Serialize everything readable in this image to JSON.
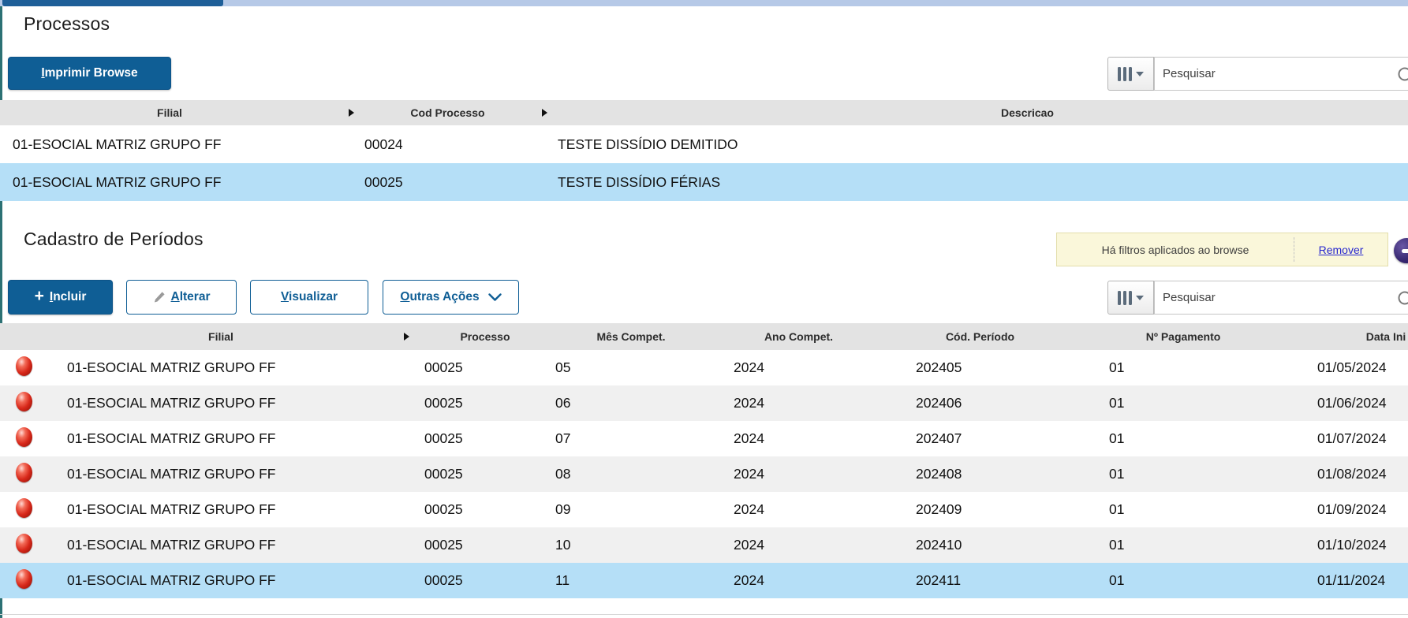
{
  "colors": {
    "accent": "#0f5e95",
    "selected_row": "#b5dff7",
    "alt_row": "#f0f0f0",
    "header_row": "#e3e3e3",
    "notice_bg": "#faf7da",
    "status_red": "#d8281a",
    "badge_purple": "#3a2a74",
    "topbar_blue": "#b6c9e7",
    "left_edge_teal": "#2c7174"
  },
  "icons": {
    "columns_button": "columns-icon",
    "caret": "caret-down-icon",
    "search": "search-icon",
    "sort": "sort-arrow-icon",
    "status": "red-ball-icon",
    "badge": "purple-filter-icon",
    "incluir": "plus-icon",
    "alterar": "pencil-icon",
    "outras": "chevron-down-icon"
  },
  "processos": {
    "title": "Processos",
    "print_button": "Imprimir Browse",
    "search_placeholder": "Pesquisar",
    "columns": [
      "Filial",
      "Cod Processo",
      "Descricao"
    ],
    "rows": [
      {
        "filial": "01-ESOCIAL MATRIZ GRUPO FF",
        "cod": "00024",
        "descricao": "TESTE DISSÍDIO DEMITIDO",
        "selected": false
      },
      {
        "filial": "01-ESOCIAL MATRIZ GRUPO FF",
        "cod": "00025",
        "descricao": "TESTE DISSÍDIO FÉRIAS",
        "selected": true
      }
    ]
  },
  "periodos": {
    "title": "Cadastro de Períodos",
    "filter_notice": {
      "text": "Há filtros aplicados ao browse",
      "action": "Remover"
    },
    "buttons": {
      "incluir": "Incluir",
      "alterar": "Alterar",
      "visualizar": "Visualizar",
      "outras_acoes": "Outras Ações"
    },
    "search_placeholder": "Pesquisar",
    "columns": [
      "Filial",
      "Processo",
      "Mês Compet.",
      "Ano Compet.",
      "Cód. Período",
      "Nº Pagamento",
      "Data Ini"
    ],
    "rows": [
      {
        "filial": "01-ESOCIAL MATRIZ GRUPO FF",
        "processo": "00025",
        "mes": "05",
        "ano": "2024",
        "cod_periodo": "202405",
        "pagamento": "01",
        "data_ini": "01/05/2024",
        "selected": false
      },
      {
        "filial": "01-ESOCIAL MATRIZ GRUPO FF",
        "processo": "00025",
        "mes": "06",
        "ano": "2024",
        "cod_periodo": "202406",
        "pagamento": "01",
        "data_ini": "01/06/2024",
        "selected": false
      },
      {
        "filial": "01-ESOCIAL MATRIZ GRUPO FF",
        "processo": "00025",
        "mes": "07",
        "ano": "2024",
        "cod_periodo": "202407",
        "pagamento": "01",
        "data_ini": "01/07/2024",
        "selected": false
      },
      {
        "filial": "01-ESOCIAL MATRIZ GRUPO FF",
        "processo": "00025",
        "mes": "08",
        "ano": "2024",
        "cod_periodo": "202408",
        "pagamento": "01",
        "data_ini": "01/08/2024",
        "selected": false
      },
      {
        "filial": "01-ESOCIAL MATRIZ GRUPO FF",
        "processo": "00025",
        "mes": "09",
        "ano": "2024",
        "cod_periodo": "202409",
        "pagamento": "01",
        "data_ini": "01/09/2024",
        "selected": false
      },
      {
        "filial": "01-ESOCIAL MATRIZ GRUPO FF",
        "processo": "00025",
        "mes": "10",
        "ano": "2024",
        "cod_periodo": "202410",
        "pagamento": "01",
        "data_ini": "01/10/2024",
        "selected": false
      },
      {
        "filial": "01-ESOCIAL MATRIZ GRUPO FF",
        "processo": "00025",
        "mes": "11",
        "ano": "2024",
        "cod_periodo": "202411",
        "pagamento": "01",
        "data_ini": "01/11/2024",
        "selected": true
      }
    ]
  }
}
